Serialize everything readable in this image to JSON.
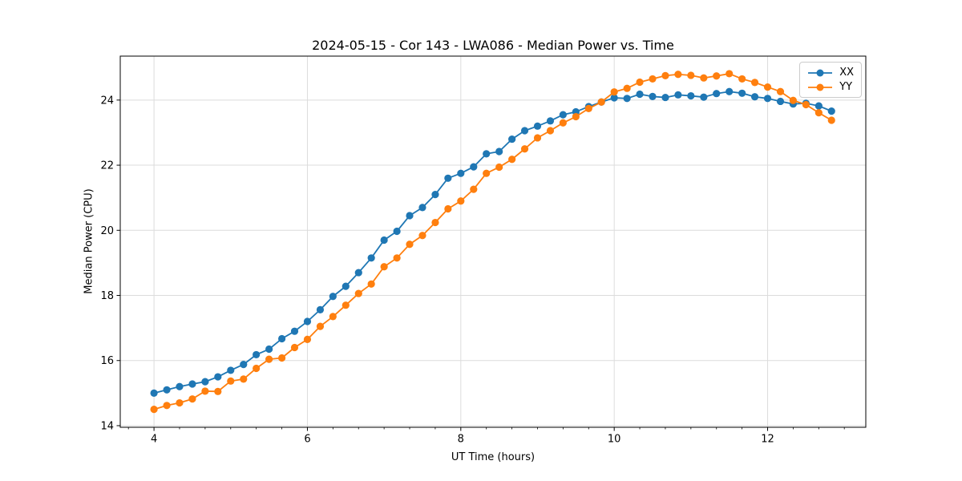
{
  "chart_data": {
    "type": "line",
    "title": "2024-05-15 - Cor 143 - LWA086 - Median Power vs. Time",
    "xlabel": "UT Time (hours)",
    "ylabel": "Median Power (CPU)",
    "xlim": [
      3.56,
      13.28
    ],
    "ylim": [
      13.95,
      25.35
    ],
    "xticks": [
      4,
      6,
      8,
      10,
      12
    ],
    "yticks": [
      14,
      16,
      18,
      20,
      22,
      24
    ],
    "x_minor_step": 0.33333,
    "grid": true,
    "grid_color": "#dcdcdc",
    "legend_position": "upper right",
    "x": [
      4.0,
      4.167,
      4.333,
      4.5,
      4.667,
      4.833,
      5.0,
      5.167,
      5.333,
      5.5,
      5.667,
      5.833,
      6.0,
      6.167,
      6.333,
      6.5,
      6.667,
      6.833,
      7.0,
      7.167,
      7.333,
      7.5,
      7.667,
      7.833,
      8.0,
      8.167,
      8.333,
      8.5,
      8.667,
      8.833,
      9.0,
      9.167,
      9.333,
      9.5,
      9.667,
      9.833,
      10.0,
      10.167,
      10.333,
      10.5,
      10.667,
      10.833,
      11.0,
      11.167,
      11.333,
      11.5,
      11.667,
      11.833,
      12.0,
      12.167,
      12.333,
      12.5,
      12.667,
      12.833
    ],
    "series": [
      {
        "name": "XX",
        "color": "#1f77b4",
        "values": [
          15.0,
          15.1,
          15.2,
          15.28,
          15.35,
          15.5,
          15.7,
          15.88,
          16.18,
          16.35,
          16.67,
          16.9,
          17.2,
          17.56,
          17.97,
          18.28,
          18.7,
          19.15,
          19.7,
          19.97,
          20.45,
          20.7,
          21.1,
          21.6,
          21.75,
          21.95,
          22.35,
          22.42,
          22.8,
          23.06,
          23.2,
          23.36,
          23.55,
          23.64,
          23.8,
          23.94,
          24.07,
          24.05,
          24.18,
          24.11,
          24.08,
          24.16,
          24.13,
          24.09,
          24.2,
          24.26,
          24.21,
          24.1,
          24.05,
          23.96,
          23.88,
          23.9,
          23.82,
          23.66
        ]
      },
      {
        "name": "YY",
        "color": "#ff7f0e",
        "values": [
          14.5,
          14.62,
          14.7,
          14.82,
          15.06,
          15.05,
          15.37,
          15.43,
          15.76,
          16.04,
          16.08,
          16.4,
          16.65,
          17.05,
          17.35,
          17.7,
          18.06,
          18.35,
          18.88,
          19.15,
          19.57,
          19.84,
          20.24,
          20.66,
          20.9,
          21.26,
          21.75,
          21.94,
          22.18,
          22.5,
          22.84,
          23.06,
          23.3,
          23.49,
          23.74,
          23.94,
          24.25,
          24.36,
          24.55,
          24.65,
          24.75,
          24.79,
          24.76,
          24.68,
          24.74,
          24.81,
          24.65,
          24.54,
          24.4,
          24.26,
          23.99,
          23.86,
          23.61,
          23.38
        ]
      }
    ]
  }
}
